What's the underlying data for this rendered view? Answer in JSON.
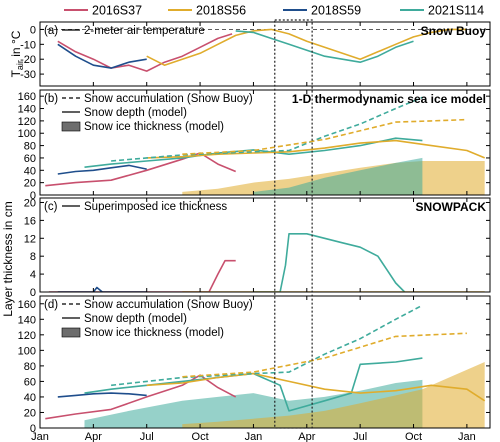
{
  "chart_data": {
    "type": "line",
    "legend": {
      "placement": "top",
      "entries": [
        {
          "name": "2016S37",
          "color": "#c8506e"
        },
        {
          "name": "2018S56",
          "color": "#e0ac2c"
        },
        {
          "name": "2018S59",
          "color": "#1f4e8c"
        },
        {
          "name": "2021S114",
          "color": "#3fab9c"
        }
      ]
    },
    "x_axis": {
      "ticks": [
        "Jan",
        "Apr",
        "Jul",
        "Oct",
        "Jan",
        "Apr",
        "Jul",
        "Oct",
        "Jan"
      ],
      "tick_months": [
        0,
        3,
        6,
        9,
        12,
        15,
        18,
        21,
        24
      ],
      "range_months": [
        0,
        25.3
      ]
    },
    "highlight_window_months": [
      13.2,
      15.3
    ],
    "shared_ylabel": "Layer thickness in cm",
    "panels": [
      {
        "id": "a",
        "label": "(a)",
        "title": "Snow Buoy",
        "ylabel_main": "T",
        "ylabel_sub": "air",
        "ylabel_rest": " in °C",
        "ylim": [
          -38,
          5
        ],
        "yticks": [
          0,
          -10,
          -20,
          -30
        ],
        "legend": [
          {
            "style": "solid",
            "label": "2-meter air temperature"
          }
        ],
        "zero_line": true,
        "series": [
          {
            "name": "2016S37",
            "x": [
              1.0,
              2.0,
              3.0,
              4.0,
              5.0,
              6.0,
              7.0,
              8.0,
              9.0,
              10.0,
              10.8
            ],
            "y": [
              -8,
              -15,
              -20,
              -26,
              -24,
              -28,
              -22,
              -18,
              -12,
              -6,
              -3
            ]
          },
          {
            "name": "2018S56",
            "x": [
              6.0,
              7.0,
              8.0,
              9.0,
              10.0,
              11.0,
              12.0,
              13.0,
              14.0,
              15.0,
              16.0,
              17.0,
              18.0,
              19.0,
              20.0,
              21.0,
              22.0,
              23.0,
              24.0
            ],
            "y": [
              -18,
              -24,
              -20,
              -16,
              -10,
              -4,
              -1,
              0,
              -3,
              -8,
              -12,
              -16,
              -20,
              -15,
              -10,
              -5,
              -2,
              0,
              0
            ]
          },
          {
            "name": "2018S59",
            "x": [
              1.0,
              2.0,
              3.0,
              4.0,
              5.0,
              6.0
            ],
            "y": [
              -10,
              -18,
              -24,
              -26,
              -22,
              -20
            ]
          },
          {
            "name": "2021S114",
            "x": [
              11.0,
              12.0,
              13.0,
              14.0,
              15.0,
              16.0,
              17.0,
              18.0,
              19.0,
              20.0,
              21.0
            ],
            "y": [
              -1,
              -2,
              -6,
              -10,
              -14,
              -18,
              -20,
              -22,
              -18,
              -12,
              -8
            ]
          }
        ]
      },
      {
        "id": "b",
        "label": "(b)",
        "title": "1-D thermodynamic sea ice model",
        "ylim": [
          0,
          170
        ],
        "yticks": [
          0,
          20,
          40,
          60,
          80,
          100,
          120,
          140,
          160
        ],
        "legend": [
          {
            "style": "dashed",
            "label": "Snow accumulation (Snow Buoy)"
          },
          {
            "style": "solid",
            "label": "Snow depth (model)"
          },
          {
            "style": "box",
            "label": "Snow ice thickness (model)"
          }
        ],
        "series": [
          {
            "name": "2016S37",
            "kind": "snow_depth",
            "x": [
              0.3,
              2.0,
              4.0,
              6.0,
              8.0,
              9.0,
              10.0,
              11.0
            ],
            "y": [
              15,
              20,
              24,
              40,
              58,
              68,
              50,
              38
            ]
          },
          {
            "name": "2018S59",
            "kind": "snow_depth",
            "x": [
              1.0,
              2.0,
              3.0,
              4.0,
              5.0,
              6.0
            ],
            "y": [
              34,
              38,
              40,
              44,
              48,
              42
            ]
          },
          {
            "name": "2021S114",
            "kind": "snow_depth",
            "x": [
              2.5,
              4.0,
              6.0,
              8.0,
              10.0,
              12.0,
              14.0,
              16.0,
              18.0,
              20.0,
              21.5
            ],
            "y": [
              45,
              50,
              55,
              60,
              68,
              73,
              66,
              72,
              80,
              92,
              88
            ]
          },
          {
            "name": "2018S56",
            "kind": "snow_depth",
            "x": [
              6.0,
              8.0,
              10.0,
              12.0,
              14.0,
              16.0,
              18.0,
              20.0,
              22.0,
              24.0,
              25.0
            ],
            "y": [
              60,
              62,
              66,
              68,
              70,
              76,
              84,
              88,
              80,
              72,
              60
            ]
          },
          {
            "name": "2021S114",
            "kind": "snow_accumulation",
            "x": [
              4.0,
              8.0,
              12.0,
              14.0,
              16.0,
              18.0,
              20.0,
              21.5
            ],
            "y": [
              55,
              65,
              70,
              72,
              95,
              115,
              140,
              158
            ]
          },
          {
            "name": "2018S56",
            "kind": "snow_accumulation",
            "x": [
              8.0,
              12.0,
              16.0,
              20.0,
              22.0,
              24.0
            ],
            "y": [
              66,
              72,
              90,
              118,
              120,
              122
            ]
          },
          {
            "name": "2018S56",
            "kind": "snow_ice",
            "x": [
              8.0,
              10.0,
              12.0,
              14.0,
              16.0,
              18.0,
              20.0,
              21.5,
              25.0
            ],
            "y": [
              5,
              10,
              20,
              26,
              35,
              44,
              52,
              55,
              55
            ]
          },
          {
            "name": "2021S114",
            "kind": "snow_ice",
            "x": [
              12.0,
              14.0,
              16.0,
              18.0,
              20.0,
              21.5
            ],
            "y": [
              5,
              12,
              28,
              40,
              52,
              60
            ]
          }
        ]
      },
      {
        "id": "c",
        "label": "(c)",
        "title": "SNOWPACK",
        "ylim": [
          0,
          21
        ],
        "yticks": [
          0,
          4,
          8,
          12,
          16,
          20
        ],
        "legend": [
          {
            "style": "solid",
            "label": "Superimposed ice thickness"
          }
        ],
        "series": [
          {
            "name": "2016S37",
            "x": [
              0.5,
              9.5,
              10.0,
              10.4,
              11.0
            ],
            "y": [
              0,
              0,
              4,
              7,
              7
            ]
          },
          {
            "name": "2018S59",
            "x": [
              1.0,
              3.0,
              3.2,
              3.5,
              6.0
            ],
            "y": [
              0,
              0,
              1,
              0,
              0
            ]
          },
          {
            "name": "2021S114",
            "x": [
              12.0,
              13.5,
              13.8,
              14.0,
              15.0,
              16.0,
              17.0,
              18.0,
              19.0,
              19.5,
              20.0,
              20.5
            ],
            "y": [
              0,
              0,
              6,
              13,
              13,
              12,
              11,
              10,
              8,
              5,
              2,
              0
            ]
          },
          {
            "name": "2018S56",
            "x": [
              8.0,
              25.0
            ],
            "y": [
              0,
              0
            ]
          }
        ]
      },
      {
        "id": "d",
        "label": "(d)",
        "ylim": [
          0,
          170
        ],
        "yticks": [
          0,
          20,
          40,
          60,
          80,
          100,
          120,
          140,
          160
        ],
        "legend": [
          {
            "style": "dashed",
            "label": "Snow accumulation (Snow Buoy)"
          },
          {
            "style": "solid",
            "label": "Snow depth (model)"
          },
          {
            "style": "box",
            "label": "Snow ice thickness (model)"
          }
        ],
        "series": [
          {
            "name": "2016S37",
            "kind": "snow_depth",
            "x": [
              0.3,
              2.0,
              4.0,
              6.0,
              8.0,
              9.0,
              10.0,
              11.0
            ],
            "y": [
              12,
              18,
              24,
              40,
              55,
              68,
              52,
              40
            ]
          },
          {
            "name": "2018S59",
            "kind": "snow_depth",
            "x": [
              1.0,
              2.0,
              3.0,
              4.0,
              5.0,
              6.0
            ],
            "y": [
              40,
              42,
              44,
              45,
              44,
              42
            ]
          },
          {
            "name": "2021S114",
            "kind": "snow_depth",
            "x": [
              2.5,
              4.0,
              6.0,
              8.0,
              10.0,
              12.0,
              13.5,
              14.0,
              16.0,
              17.5,
              18.0,
              20.0,
              21.5
            ],
            "y": [
              45,
              50,
              55,
              60,
              65,
              70,
              55,
              22,
              35,
              45,
              82,
              85,
              90
            ]
          },
          {
            "name": "2018S56",
            "kind": "snow_depth",
            "x": [
              6.0,
              8.0,
              10.0,
              12.0,
              14.0,
              16.0,
              18.0,
              20.0,
              22.0,
              24.0,
              25.0
            ],
            "y": [
              55,
              58,
              65,
              70,
              60,
              50,
              45,
              48,
              55,
              50,
              35
            ]
          },
          {
            "name": "2021S114",
            "kind": "snow_accumulation",
            "x": [
              4.0,
              8.0,
              12.0,
              14.0,
              16.0,
              18.0,
              20.0,
              21.5
            ],
            "y": [
              55,
              65,
              70,
              72,
              95,
              115,
              140,
              158
            ]
          },
          {
            "name": "2018S56",
            "kind": "snow_accumulation",
            "x": [
              8.0,
              12.0,
              16.0,
              20.0,
              22.0,
              24.0
            ],
            "y": [
              66,
              72,
              90,
              118,
              120,
              122
            ]
          },
          {
            "name": "2021S114",
            "kind": "snow_ice",
            "x": [
              2.5,
              5.0,
              8.0,
              10.0,
              12.0,
              14.0,
              16.0,
              18.0,
              20.0,
              21.5
            ],
            "y": [
              10,
              22,
              35,
              40,
              45,
              35,
              40,
              48,
              58,
              62
            ]
          },
          {
            "name": "2018S56",
            "kind": "snow_ice",
            "x": [
              8.0,
              10.0,
              12.0,
              14.0,
              16.0,
              18.0,
              20.0,
              21.5,
              23.0,
              25.0
            ],
            "y": [
              5,
              8,
              12,
              16,
              22,
              32,
              42,
              50,
              65,
              85
            ]
          }
        ]
      }
    ]
  }
}
